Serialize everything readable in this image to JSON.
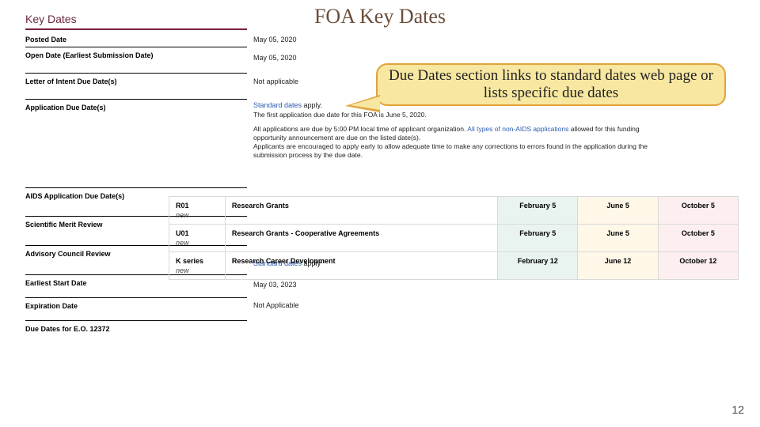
{
  "title": "FOA Key Dates",
  "section_header": "Key Dates",
  "page_number": "12",
  "callout_text": "Due Dates section links to standard dates web page or lists specific due dates",
  "labels": {
    "posted": "Posted Date",
    "open": "Open Date (Earliest Submission Date)",
    "loi": "Letter of Intent Due Date(s)",
    "app_due": "Application Due Date(s)",
    "aids": "AIDS Application Due Date(s)",
    "merit": "Scientific Merit Review",
    "council": "Advisory Council Review",
    "start": "Earliest Start Date",
    "expire": "Expiration Date",
    "eo": "Due Dates for E.O. 12372"
  },
  "values": {
    "posted": "May 05, 2020",
    "open": "May 05, 2020",
    "loi": "Not applicable",
    "app_due_link": "Standard dates",
    "app_due_suffix": " apply.",
    "app_line1": "The first application due date for this FOA is June 5, 2020.",
    "app_line2_a": "All applications are due by 5:00 PM local time of applicant organization. ",
    "app_line2_link": "All types of non-AIDS applications",
    "app_line2_b": " allowed for this funding opportunity announcement are due on the listed date(s).",
    "app_line3": "Applicants are encouraged to apply early to allow adequate time to make any corrections to errors found in the application during the submission process by the due date.",
    "start_link": "Standard dates",
    "start_suffix": " apply",
    "expire": "May 03, 2023",
    "eo": "Not Applicable"
  },
  "grants": {
    "rows": [
      {
        "code": "R01",
        "sub": "new",
        "name": "Research Grants",
        "feb": "February 5",
        "jun": "June 5",
        "oct": "October 5"
      },
      {
        "code": "U01",
        "sub": "new",
        "name": "Research Grants - Cooperative Agreements",
        "feb": "February 5",
        "jun": "June 5",
        "oct": "October 5"
      },
      {
        "code": "K series",
        "sub": "new",
        "name": "Research Career Development",
        "feb": "February 12",
        "jun": "June 12",
        "oct": "October 12"
      }
    ],
    "colors": {
      "feb": "#e9f4f0",
      "jun": "#fff7e8",
      "oct": "#fdeef0",
      "border": "#d9d9d9"
    }
  }
}
